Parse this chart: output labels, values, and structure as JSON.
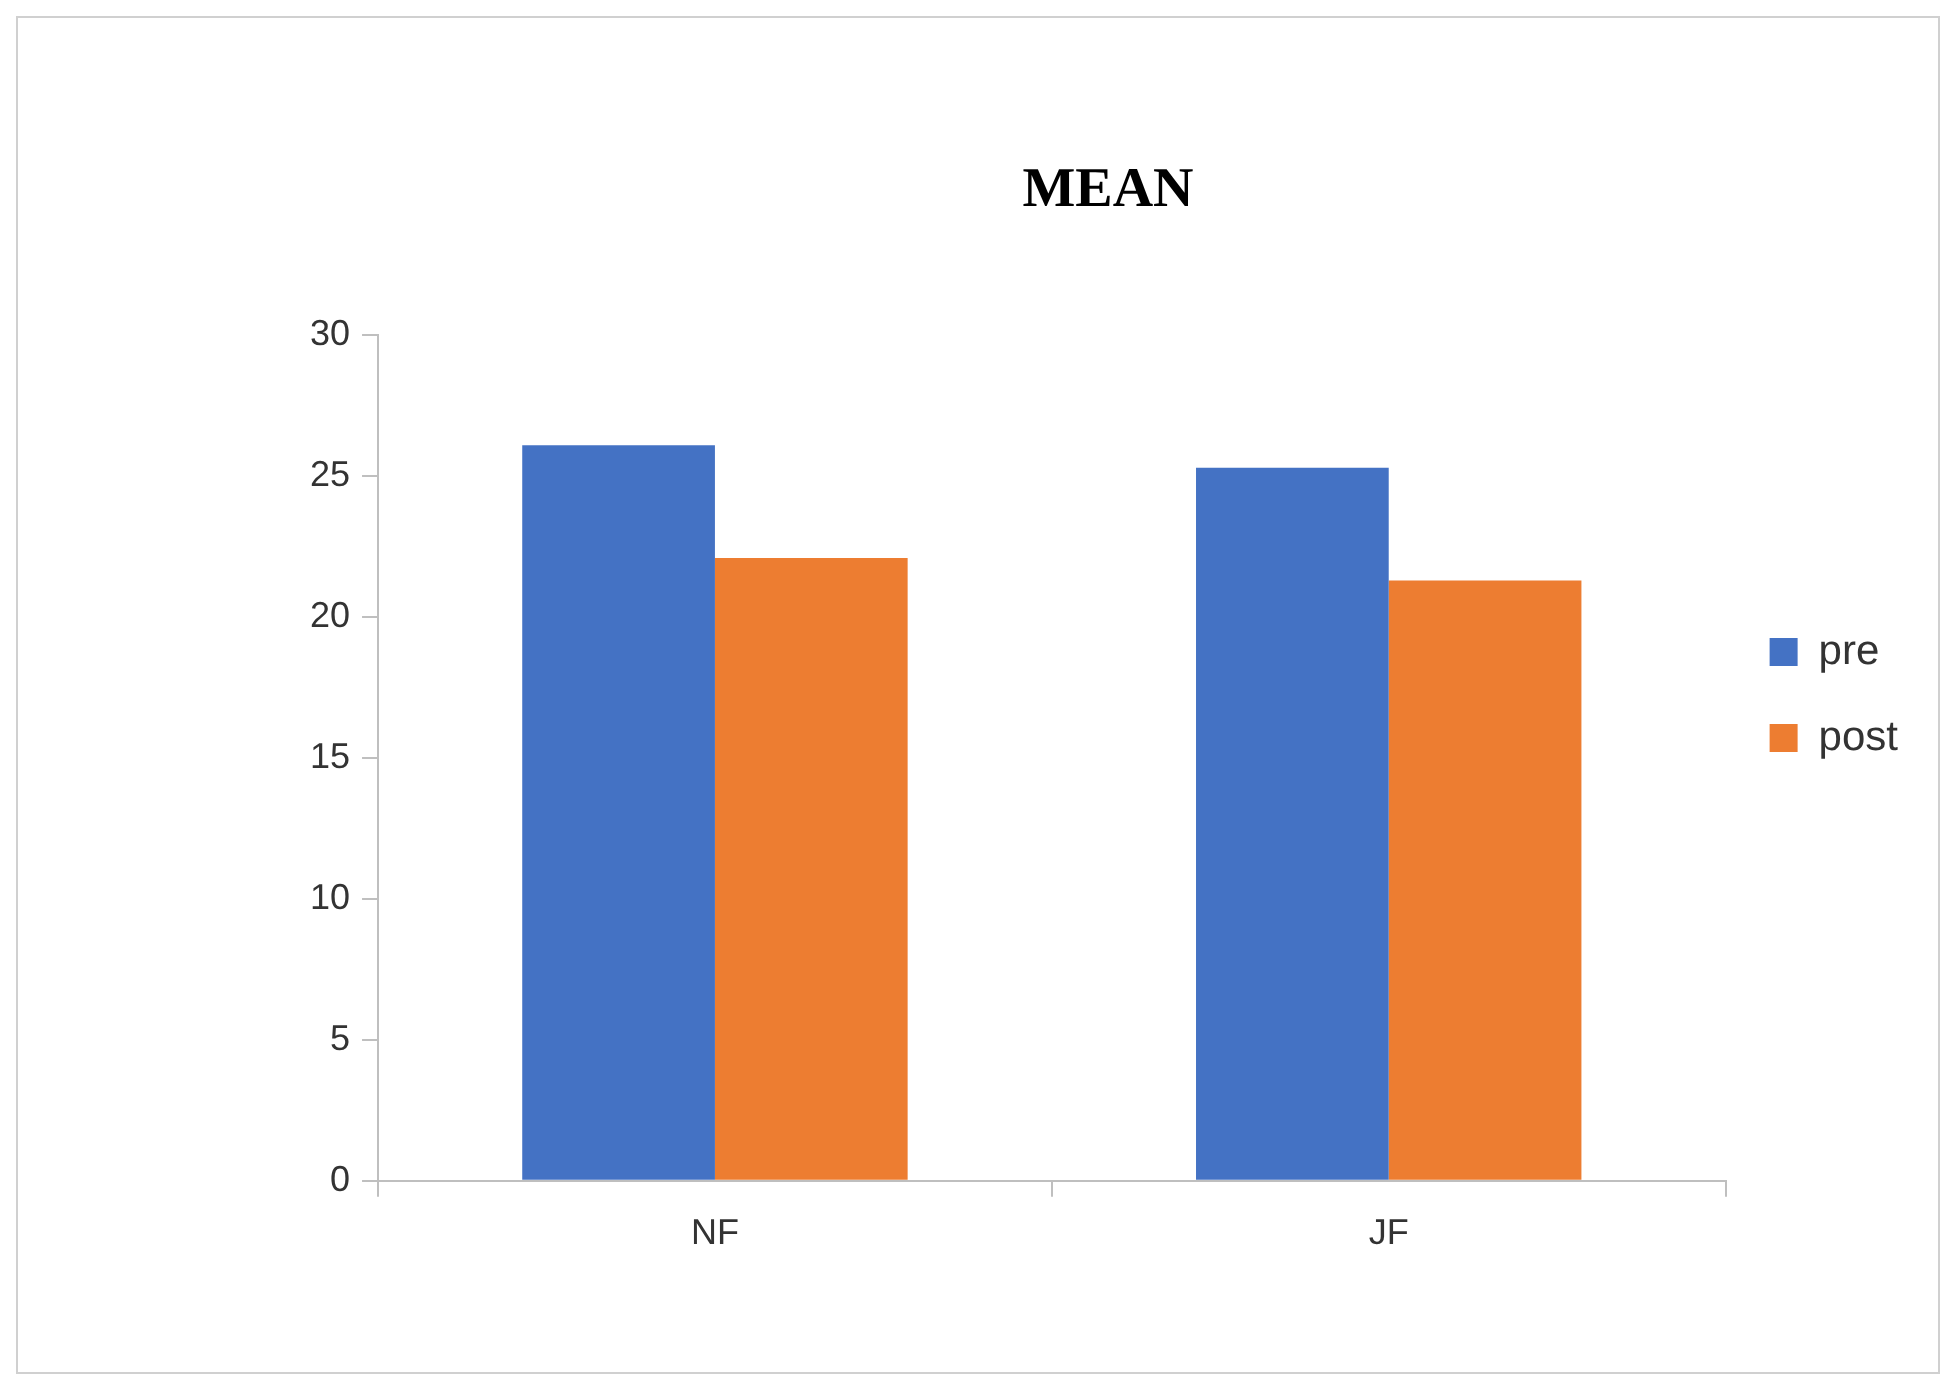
{
  "chart_data": {
    "type": "bar",
    "title": "MEAN",
    "categories": [
      "NF",
      "JF"
    ],
    "series": [
      {
        "name": "pre",
        "color": "#4472c4",
        "values": [
          26.1,
          25.3
        ]
      },
      {
        "name": "post",
        "color": "#ed7d31",
        "values": [
          22.1,
          21.3
        ]
      }
    ],
    "ylim": [
      0,
      30
    ],
    "yticks": [
      0,
      5,
      10,
      15,
      20,
      25,
      30
    ],
    "grid": false,
    "legend": "right"
  }
}
